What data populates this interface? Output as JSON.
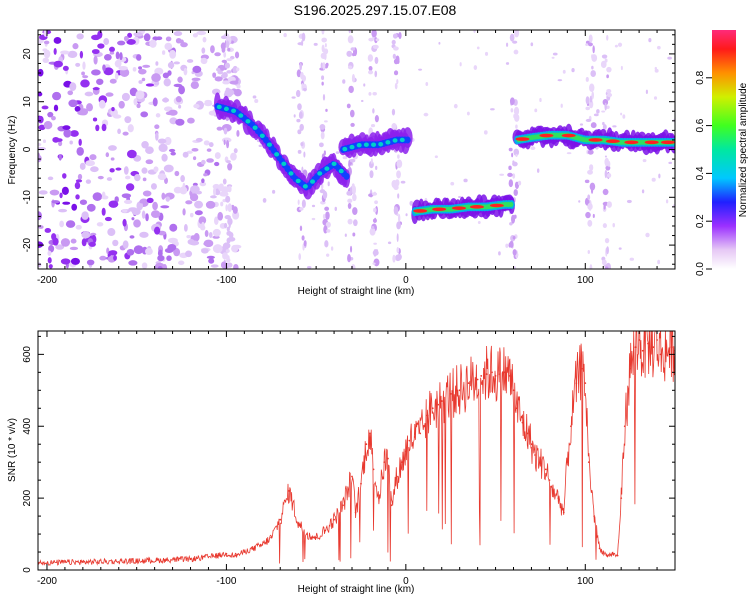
{
  "title": "S196.2025.297.15.07.E08",
  "chart_data": [
    {
      "type": "heatmap",
      "title": "S196.2025.297.15.07.E08",
      "xlabel": "Height of straight line (km)",
      "ylabel": "Frequency (Hz)",
      "xlim": [
        -205,
        150
      ],
      "ylim": [
        -25,
        25
      ],
      "xticks": [
        -200,
        -100,
        0,
        100
      ],
      "yticks": [
        -20,
        -10,
        0,
        10,
        20
      ],
      "colorbar": {
        "label": "Normalized spectral amplitude",
        "range": [
          0,
          1
        ],
        "ticks": [
          "0.0",
          "0.2",
          "0.4",
          "0.6",
          "0.8"
        ]
      },
      "ridge_segments": [
        {
          "x": [
            -105,
            -95,
            -85,
            -78,
            -70,
            -62,
            -55,
            -48,
            -40,
            -32
          ],
          "y": [
            9,
            8,
            5,
            2,
            -2,
            -6,
            -8,
            -5,
            -3,
            -6
          ]
        },
        {
          "x": [
            -35,
            -25,
            -15,
            -5,
            2
          ],
          "y": [
            0,
            1,
            1,
            2,
            2
          ]
        },
        {
          "x": [
            5,
            15,
            25,
            35,
            45,
            55,
            60
          ],
          "y": [
            -13,
            -12.5,
            -12.5,
            -12,
            -12,
            -11.5,
            -11.5
          ]
        },
        {
          "x": [
            62,
            70,
            80,
            90,
            100,
            110,
            120,
            130,
            140,
            150
          ],
          "y": [
            2,
            2.5,
            3,
            3,
            2,
            2,
            1.5,
            1.5,
            1.5,
            1.5
          ]
        }
      ]
    },
    {
      "type": "line",
      "xlabel": "Height of straight line (km)",
      "ylabel": "SNR (10 * v/v)",
      "xlim": [
        -205,
        150
      ],
      "ylim": [
        0,
        665
      ],
      "xticks": [
        -200,
        -100,
        0,
        100
      ],
      "yticks": [
        0,
        200,
        400,
        600
      ],
      "series": [
        {
          "name": "SNR",
          "color": "#e8392f",
          "x": [
            -205,
            -180,
            -150,
            -120,
            -105,
            -100,
            -95,
            -90,
            -85,
            -80,
            -75,
            -70,
            -65,
            -60,
            -55,
            -50,
            -45,
            -40,
            -35,
            -30,
            -28,
            -25,
            -22,
            -20,
            -18,
            -15,
            -12,
            -10,
            -8,
            -5,
            -2,
            0,
            2,
            5,
            8,
            10,
            12,
            15,
            18,
            20,
            25,
            30,
            35,
            40,
            42,
            45,
            48,
            50,
            52,
            55,
            58,
            60,
            62,
            65,
            68,
            70,
            72,
            75,
            78,
            80,
            82,
            85,
            88,
            90,
            92,
            95,
            98,
            100,
            102,
            105,
            108,
            110,
            112,
            115,
            118,
            120,
            122,
            125,
            128,
            130,
            132,
            135,
            138,
            140,
            142,
            145,
            148,
            150
          ],
          "y": [
            20,
            22,
            25,
            30,
            40,
            45,
            40,
            50,
            60,
            70,
            90,
            140,
            220,
            130,
            100,
            90,
            110,
            140,
            180,
            260,
            160,
            240,
            350,
            380,
            280,
            200,
            300,
            310,
            180,
            260,
            300,
            330,
            360,
            370,
            380,
            400,
            430,
            450,
            460,
            470,
            490,
            500,
            520,
            530,
            540,
            545,
            550,
            540,
            545,
            550,
            540,
            500,
            450,
            410,
            380,
            350,
            320,
            300,
            280,
            250,
            220,
            200,
            160,
            300,
            400,
            520,
            560,
            520,
            300,
            150,
            60,
            50,
            40,
            45,
            40,
            200,
            400,
            560,
            620,
            640,
            610,
            630,
            620,
            640,
            600,
            610,
            620,
            610
          ]
        }
      ]
    }
  ]
}
